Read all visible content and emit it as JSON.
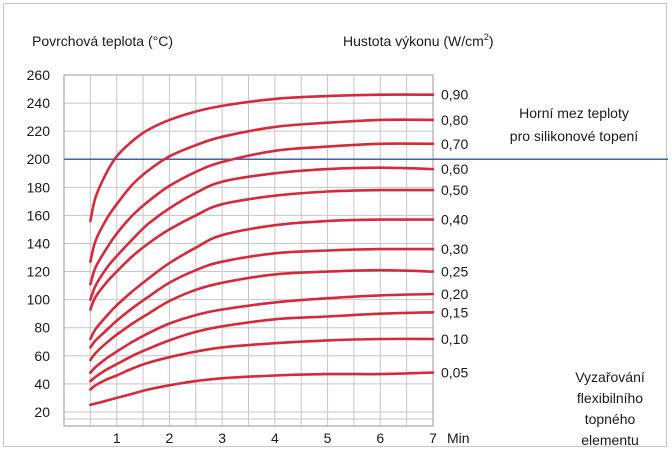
{
  "chart_data": {
    "type": "line",
    "ylabel": "Povrchová teplota (°C)",
    "series_title_prefix": "Hustota výkonu (W/cm",
    "series_title_sup": "2",
    "series_title_suffix": ")",
    "xunit": "Min",
    "x_ticks": [
      "1",
      "2",
      "3",
      "4",
      "5",
      "6",
      "7"
    ],
    "y_ticks": [
      "20",
      "40",
      "60",
      "80",
      "100",
      "120",
      "140",
      "160",
      "180",
      "200",
      "220",
      "240",
      "260"
    ],
    "xlim": [
      0,
      7
    ],
    "ylim": [
      10,
      260
    ],
    "grid": true,
    "limit_line": {
      "value": 200,
      "label_line1": "Horní mez teploty",
      "label_line2": "pro silikonové topení",
      "color": "#3b62b5"
    },
    "side_label": [
      "Vyzařování",
      "flexibilního",
      "topného",
      "elementu"
    ],
    "curve_color": "#d42a3c",
    "series": [
      {
        "name": "0,90",
        "x": [
          0.5,
          0.6,
          0.8,
          1.0,
          1.3,
          1.6,
          2.0,
          2.5,
          3.0,
          4.0,
          5.0,
          6.0,
          7.0
        ],
        "y": [
          156,
          173,
          190,
          202,
          213,
          221,
          228,
          234,
          238,
          243,
          245,
          246,
          246
        ]
      },
      {
        "name": "0,80",
        "x": [
          0.5,
          0.6,
          0.8,
          1.0,
          1.3,
          1.6,
          2.0,
          2.5,
          3.0,
          4.0,
          5.0,
          6.0,
          7.0
        ],
        "y": [
          127,
          142,
          157,
          168,
          182,
          192,
          202,
          210,
          216,
          223,
          226,
          228,
          228
        ]
      },
      {
        "name": "0,70",
        "x": [
          0.5,
          0.6,
          0.8,
          1.0,
          1.3,
          1.6,
          2.0,
          2.5,
          3.0,
          4.0,
          5.0,
          6.0,
          7.0
        ],
        "y": [
          111,
          123,
          136,
          147,
          160,
          170,
          181,
          191,
          198,
          206,
          209,
          211,
          211
        ]
      },
      {
        "name": "0,60",
        "x": [
          0.5,
          0.6,
          0.8,
          1.0,
          1.3,
          1.6,
          2.0,
          2.5,
          3.0,
          4.0,
          5.0,
          6.0,
          7.0
        ],
        "y": [
          100,
          110,
          122,
          131,
          143,
          154,
          165,
          176,
          184,
          190,
          193,
          194,
          193
        ]
      },
      {
        "name": "0,50",
        "x": [
          0.5,
          0.6,
          0.8,
          1.0,
          1.3,
          1.6,
          2.0,
          2.5,
          3.0,
          4.0,
          5.0,
          6.0,
          7.0
        ],
        "y": [
          93,
          102,
          112,
          120,
          131,
          140,
          150,
          160,
          168,
          174,
          177,
          178,
          178
        ]
      },
      {
        "name": "0,40",
        "x": [
          0.5,
          0.6,
          0.8,
          1.0,
          1.3,
          1.6,
          2.0,
          2.5,
          3.0,
          4.0,
          5.0,
          6.0,
          7.0
        ],
        "y": [
          72,
          79,
          88,
          96,
          106,
          115,
          126,
          137,
          146,
          153,
          156,
          157,
          157
        ]
      },
      {
        "name": "0,30",
        "x": [
          0.5,
          0.6,
          0.8,
          1.0,
          1.3,
          1.6,
          2.0,
          2.5,
          3.0,
          4.0,
          5.0,
          6.0,
          7.0
        ],
        "y": [
          66,
          71,
          78,
          85,
          94,
          102,
          112,
          121,
          127,
          133,
          135,
          136,
          136
        ]
      },
      {
        "name": "0,25",
        "x": [
          0.5,
          0.6,
          0.8,
          1.0,
          1.3,
          1.6,
          2.0,
          2.5,
          3.0,
          4.0,
          5.0,
          6.0,
          7.0
        ],
        "y": [
          57,
          62,
          69,
          75,
          83,
          90,
          99,
          107,
          112,
          118,
          120,
          121,
          120
        ]
      },
      {
        "name": "0,20",
        "x": [
          0.5,
          0.6,
          0.8,
          1.0,
          1.3,
          1.6,
          2.0,
          2.5,
          3.0,
          4.0,
          5.0,
          6.0,
          7.0
        ],
        "y": [
          48,
          52,
          58,
          63,
          70,
          76,
          83,
          89,
          93,
          98,
          101,
          103,
          104
        ]
      },
      {
        "name": "0,15",
        "x": [
          0.5,
          0.6,
          0.8,
          1.0,
          1.3,
          1.6,
          2.0,
          2.5,
          3.0,
          4.0,
          5.0,
          6.0,
          7.0
        ],
        "y": [
          42,
          45,
          50,
          54,
          60,
          65,
          71,
          77,
          81,
          86,
          88,
          90,
          91
        ]
      },
      {
        "name": "0,10",
        "x": [
          0.5,
          0.6,
          0.8,
          1.0,
          1.3,
          1.6,
          2.0,
          2.5,
          3.0,
          4.0,
          5.0,
          6.0,
          7.0
        ],
        "y": [
          36,
          39,
          43,
          46,
          51,
          55,
          59,
          63,
          66,
          69,
          71,
          72,
          72
        ]
      },
      {
        "name": "0,05",
        "x": [
          0.5,
          0.6,
          0.8,
          1.0,
          1.3,
          1.6,
          2.0,
          2.5,
          3.0,
          4.0,
          5.0,
          6.0,
          7.0
        ],
        "y": [
          25,
          26,
          28,
          30,
          33,
          36,
          39,
          42,
          44,
          46,
          47,
          47,
          48
        ]
      }
    ]
  }
}
